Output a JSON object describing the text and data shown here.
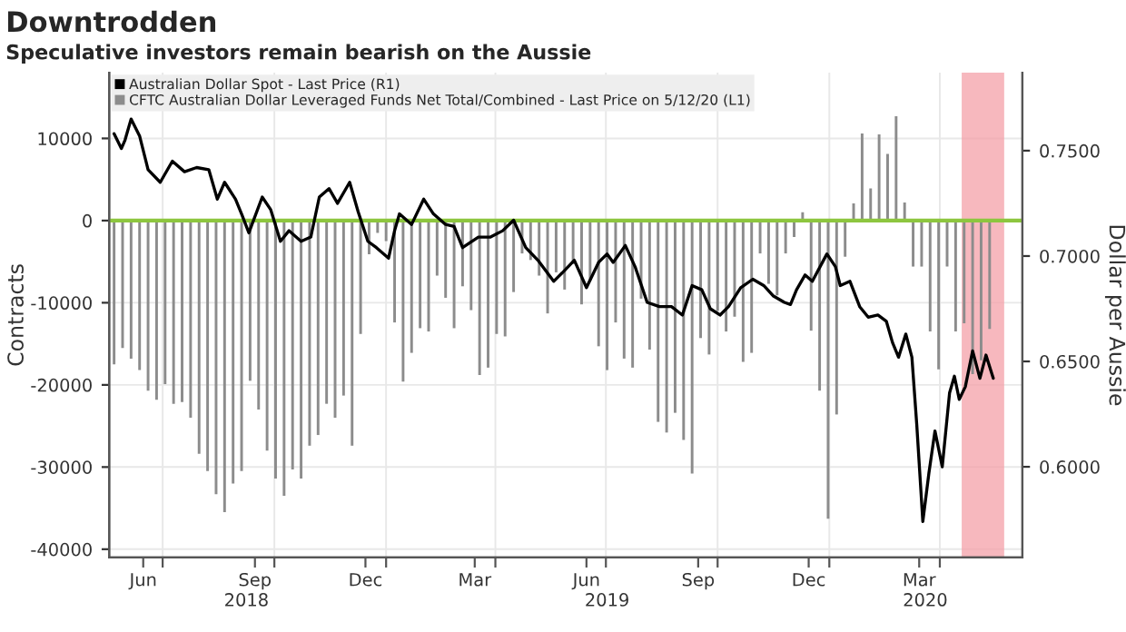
{
  "chart_data": {
    "type": "bar",
    "title": "Downtrodden",
    "subtitle": "Speculative investors remain bearish on the Aussie",
    "ylabel": "Contracts",
    "y2label": "Dollar per Aussie",
    "xlim": [
      "2018-05-18",
      "2020-06-08"
    ],
    "xticks": [
      {
        "value": "2018-06-15",
        "label": "Jun"
      },
      {
        "value": "2018-07-01",
        "label": null
      },
      {
        "value": "2018-09-15",
        "label": "Sep"
      },
      {
        "value": "2018-10-01",
        "label": null
      },
      {
        "value": "2018-12-15",
        "label": "Dec"
      },
      {
        "value": "2019-01-01",
        "label": null
      },
      {
        "value": "2019-03-15",
        "label": "Mar"
      },
      {
        "value": "2019-04-01",
        "label": null
      },
      {
        "value": "2019-06-15",
        "label": "Jun"
      },
      {
        "value": "2019-07-01",
        "label": null
      },
      {
        "value": "2019-09-15",
        "label": "Sep"
      },
      {
        "value": "2019-10-01",
        "label": null
      },
      {
        "value": "2019-12-15",
        "label": "Dec"
      },
      {
        "value": "2020-01-01",
        "label": null
      },
      {
        "value": "2020-03-15",
        "label": "Mar"
      },
      {
        "value": "2020-04-01",
        "label": null
      }
    ],
    "x2lim": [
      "2018-05-18",
      "2020-06-08"
    ],
    "x2ticks": [
      {
        "value": "2018-09-08",
        "label": "2018"
      },
      {
        "value": "2019-07-02",
        "label": "2019"
      },
      {
        "value": "2020-03-20",
        "label": "2020"
      }
    ],
    "ylim": [
      -41000,
      18000
    ],
    "yticks": [
      -40000,
      -30000,
      -20000,
      -10000,
      0,
      10000
    ],
    "y2lim": [
      0.557,
      0.787
    ],
    "y2ticks": [
      {
        "value": 0.6,
        "label": "0.6000"
      },
      {
        "value": 0.65,
        "label": "0.6500"
      },
      {
        "value": 0.7,
        "label": "0.7000"
      },
      {
        "value": 0.75,
        "label": "0.7500"
      }
    ],
    "grid": true,
    "legend": "top left",
    "ref_lines": [
      {
        "axis": "y",
        "value": 0,
        "color": "#8dc63f"
      }
    ],
    "bands": [
      {
        "axis": "x",
        "from": "2020-04-19",
        "to": "2020-05-24",
        "color": "#f4a0a8"
      }
    ],
    "series": [
      {
        "name": "Australian Dollar Spot - Last Price (R1)",
        "type": "line",
        "axis": "y2",
        "color": "#000000",
        "x": [
          "2018-05-22",
          "2018-05-28",
          "2018-05-31",
          "2018-06-05",
          "2018-06-12",
          "2018-06-19",
          "2018-06-29",
          "2018-07-09",
          "2018-07-19",
          "2018-07-29",
          "2018-08-08",
          "2018-08-15",
          "2018-08-21",
          "2018-08-30",
          "2018-09-04",
          "2018-09-10",
          "2018-09-21",
          "2018-09-28",
          "2018-10-06",
          "2018-10-13",
          "2018-10-23",
          "2018-10-31",
          "2018-11-07",
          "2018-11-15",
          "2018-11-22",
          "2018-12-02",
          "2018-12-09",
          "2018-12-17",
          "2018-12-24",
          "2019-01-03",
          "2019-01-08",
          "2019-01-12",
          "2019-01-22",
          "2019-02-01",
          "2019-02-09",
          "2019-02-19",
          "2019-02-26",
          "2019-03-05",
          "2019-03-18",
          "2019-03-28",
          "2019-04-07",
          "2019-04-16",
          "2019-04-26",
          "2019-05-06",
          "2019-05-19",
          "2019-05-26",
          "2019-06-05",
          "2019-06-15",
          "2019-06-25",
          "2019-07-02",
          "2019-07-07",
          "2019-07-17",
          "2019-07-25",
          "2019-08-04",
          "2019-08-14",
          "2019-08-24",
          "2019-09-02",
          "2019-09-10",
          "2019-09-18",
          "2019-09-25",
          "2019-10-03",
          "2019-10-10",
          "2019-10-20",
          "2019-10-30",
          "2019-11-08",
          "2019-11-16",
          "2019-11-25",
          "2019-11-30",
          "2019-12-05",
          "2019-12-12",
          "2019-12-18",
          "2019-12-30",
          "2020-01-06",
          "2020-01-10",
          "2020-01-18",
          "2020-01-26",
          "2020-02-02",
          "2020-02-10",
          "2020-02-17",
          "2020-02-22",
          "2020-02-27",
          "2020-03-04",
          "2020-03-09",
          "2020-03-13",
          "2020-03-18",
          "2020-03-23",
          "2020-03-28",
          "2020-04-03",
          "2020-04-09",
          "2020-04-13",
          "2020-04-17",
          "2020-04-22",
          "2020-04-28",
          "2020-05-04",
          "2020-05-09",
          "2020-05-15"
        ],
        "values": [
          0.758,
          0.751,
          0.755,
          0.765,
          0.757,
          0.741,
          0.735,
          0.745,
          0.74,
          0.742,
          0.741,
          0.727,
          0.735,
          0.727,
          0.72,
          0.711,
          0.728,
          0.722,
          0.707,
          0.712,
          0.707,
          0.709,
          0.728,
          0.732,
          0.725,
          0.735,
          0.721,
          0.707,
          0.704,
          0.699,
          0.712,
          0.72,
          0.715,
          0.727,
          0.72,
          0.715,
          0.714,
          0.704,
          0.709,
          0.709,
          0.712,
          0.717,
          0.704,
          0.698,
          0.688,
          0.692,
          0.698,
          0.685,
          0.697,
          0.701,
          0.697,
          0.705,
          0.695,
          0.678,
          0.676,
          0.676,
          0.672,
          0.686,
          0.684,
          0.675,
          0.672,
          0.676,
          0.685,
          0.689,
          0.686,
          0.681,
          0.678,
          0.677,
          0.684,
          0.691,
          0.688,
          0.701,
          0.695,
          0.686,
          0.688,
          0.676,
          0.671,
          0.672,
          0.669,
          0.659,
          0.652,
          0.663,
          0.652,
          0.62,
          0.574,
          0.597,
          0.617,
          0.6,
          0.635,
          0.643,
          0.632,
          0.638,
          0.655,
          0.642,
          0.653,
          0.642
        ]
      },
      {
        "name": "CFTC Australian Dollar Leveraged Funds Net Total/Combined - Last Price on 5/12/20 (L1)",
        "axis": "y",
        "color": "#8c8c8c",
        "x": [
          "2018-05-22",
          "2018-05-29",
          "2018-06-05",
          "2018-06-12",
          "2018-06-19",
          "2018-06-26",
          "2018-07-03",
          "2018-07-10",
          "2018-07-17",
          "2018-07-24",
          "2018-07-31",
          "2018-08-07",
          "2018-08-14",
          "2018-08-21",
          "2018-08-28",
          "2018-09-04",
          "2018-09-11",
          "2018-09-18",
          "2018-09-25",
          "2018-10-02",
          "2018-10-09",
          "2018-10-16",
          "2018-10-23",
          "2018-10-30",
          "2018-11-06",
          "2018-11-13",
          "2018-11-20",
          "2018-11-27",
          "2018-12-04",
          "2018-12-11",
          "2018-12-18",
          "2018-12-25",
          "2019-01-01",
          "2019-01-08",
          "2019-01-15",
          "2019-01-22",
          "2019-01-29",
          "2019-02-05",
          "2019-02-12",
          "2019-02-19",
          "2019-02-26",
          "2019-03-05",
          "2019-03-12",
          "2019-03-19",
          "2019-03-26",
          "2019-04-02",
          "2019-04-09",
          "2019-04-16",
          "2019-04-23",
          "2019-04-30",
          "2019-05-07",
          "2019-05-14",
          "2019-05-21",
          "2019-05-28",
          "2019-06-04",
          "2019-06-11",
          "2019-06-18",
          "2019-06-25",
          "2019-07-02",
          "2019-07-09",
          "2019-07-16",
          "2019-07-23",
          "2019-07-30",
          "2019-08-06",
          "2019-08-13",
          "2019-08-20",
          "2019-08-27",
          "2019-09-03",
          "2019-09-10",
          "2019-09-17",
          "2019-09-24",
          "2019-10-01",
          "2019-10-08",
          "2019-10-15",
          "2019-10-22",
          "2019-10-29",
          "2019-11-05",
          "2019-11-12",
          "2019-11-19",
          "2019-11-26",
          "2019-12-03",
          "2019-12-10",
          "2019-12-17",
          "2019-12-24",
          "2019-12-31",
          "2020-01-07",
          "2020-01-14",
          "2020-01-21",
          "2020-01-28",
          "2020-02-04",
          "2020-02-11",
          "2020-02-18",
          "2020-02-25",
          "2020-03-03",
          "2020-03-10",
          "2020-03-17",
          "2020-03-24",
          "2020-03-31",
          "2020-04-07",
          "2020-04-14",
          "2020-04-21",
          "2020-04-28",
          "2020-05-05",
          "2020-05-12"
        ],
        "values": [
          -17500,
          -15500,
          -16800,
          -18200,
          -20700,
          -21800,
          -19900,
          -22300,
          -22100,
          -24000,
          -28400,
          -30500,
          -33300,
          -35500,
          -32000,
          -30500,
          -19500,
          -23000,
          -28000,
          -31400,
          -33500,
          -30300,
          -31400,
          -27400,
          -26100,
          -22300,
          -24000,
          -21300,
          -27400,
          -13800,
          -4100,
          -1500,
          -2500,
          -12400,
          -19600,
          -16100,
          -13100,
          -13500,
          -6700,
          -9400,
          -13100,
          -8000,
          -10900,
          -18800,
          -17900,
          -13800,
          -14100,
          -8700,
          -4000,
          -4800,
          -6700,
          -11300,
          -6300,
          -8400,
          -5300,
          -10200,
          -7300,
          -15300,
          -18200,
          -12400,
          -16800,
          -17900,
          -9500,
          -15700,
          -24500,
          -25800,
          -23400,
          -26700,
          -30800,
          -14300,
          -16300,
          -11000,
          -13500,
          -11700,
          -17200,
          -16100,
          -4000,
          -7700,
          -9100,
          -4000,
          -2000,
          1000,
          -13400,
          -20700,
          -36300,
          -23600,
          -4400,
          2100,
          10600,
          3900,
          10500,
          8100,
          12700,
          2200,
          -5600,
          -5600,
          -13500,
          -18100,
          -5600,
          -13500,
          -12500,
          -18700,
          -17000,
          -13200
        ]
      }
    ]
  }
}
